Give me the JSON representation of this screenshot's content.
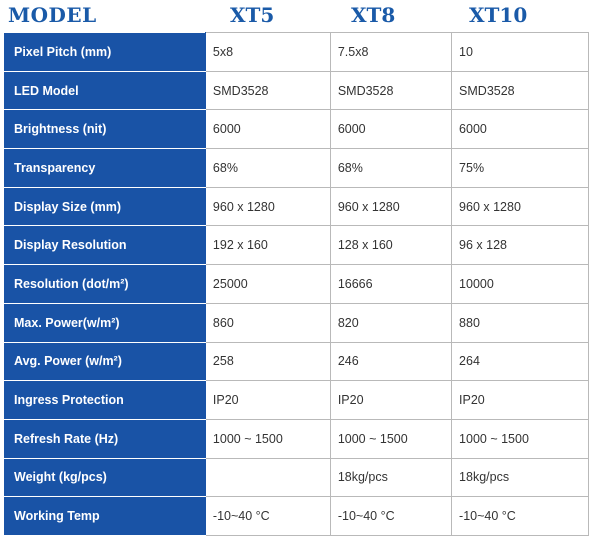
{
  "header": {
    "model": "MODEL",
    "columns": [
      "XT5",
      "XT8",
      "XT10"
    ]
  },
  "rows": [
    {
      "label": "Pixel Pitch (mm)",
      "values": [
        "5x8",
        "7.5x8",
        "10"
      ]
    },
    {
      "label": "LED Model",
      "values": [
        "SMD3528",
        "SMD3528",
        "SMD3528"
      ]
    },
    {
      "label": "Brightness (nit)",
      "values": [
        "6000",
        "6000",
        "6000"
      ]
    },
    {
      "label": "Transparency",
      "values": [
        "68%",
        "68%",
        "75%"
      ]
    },
    {
      "label": "Display Size (mm)",
      "values": [
        "960 x 1280",
        "960 x 1280",
        "960 x 1280"
      ]
    },
    {
      "label": "Display Resolution",
      "values": [
        "192 x 160",
        "128 x 160",
        "96 x 128"
      ]
    },
    {
      "label": "Resolution (dot/m²)",
      "values": [
        "25000",
        "16666",
        "10000"
      ]
    },
    {
      "label": "Max. Power(w/m²)",
      "values": [
        "860",
        "820",
        "880"
      ]
    },
    {
      "label": "Avg. Power (w/m²)",
      "values": [
        "258",
        "246",
        "264"
      ]
    },
    {
      "label": "Ingress Protection",
      "values": [
        "IP20",
        "IP20",
        "IP20"
      ]
    },
    {
      "label": "Refresh Rate (Hz)",
      "values": [
        "1000 ~ 1500",
        "1000 ~ 1500",
        "1000 ~ 1500"
      ]
    },
    {
      "label": "Weight (kg/pcs)",
      "values": [
        "",
        "18kg/pcs",
        "18kg/pcs"
      ]
    },
    {
      "label": "Working Temp",
      "values": [
        "-10~40 °C",
        "-10~40 °C",
        "-10~40 °C"
      ]
    }
  ],
  "colors": {
    "label_bg": "#1953a6",
    "header_text": "#1a5aa8",
    "grid": "#b9b9b9"
  }
}
